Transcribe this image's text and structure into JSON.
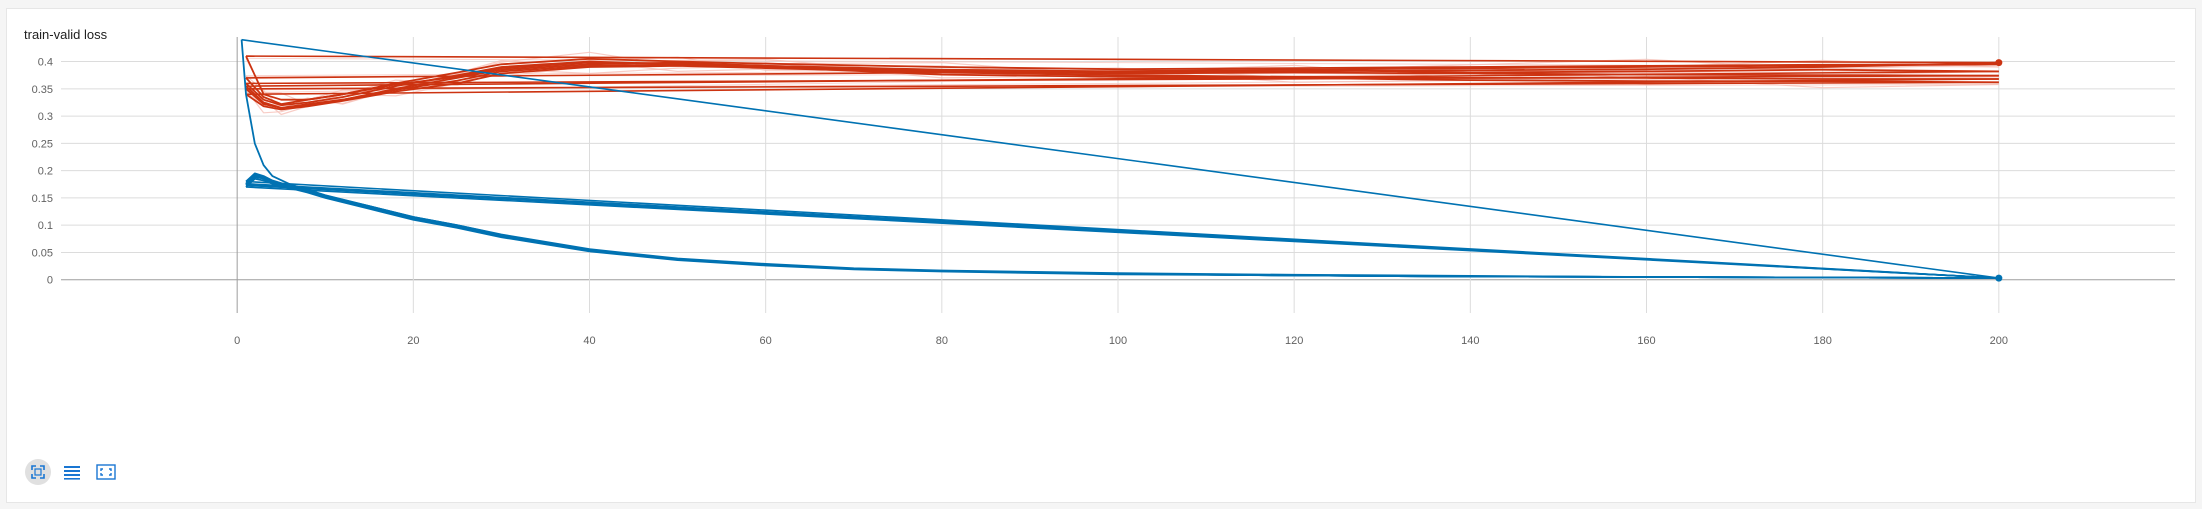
{
  "card": {
    "title": "train-valid loss"
  },
  "toolbar": {
    "buttons": [
      {
        "icon": "fit-domain-icon",
        "active": true
      },
      {
        "icon": "data-table-icon",
        "active": false
      },
      {
        "icon": "toggle-y-axis-icon",
        "active": false
      }
    ]
  },
  "colors": {
    "train_dark": "#0072b2",
    "train_light": "#a6cbe3",
    "valid_dark": "#cc3311",
    "valid_light": "#f6c1b8",
    "grid": "#dcdcdc",
    "axis": "#9e9e9e"
  },
  "chart_data": {
    "type": "line",
    "title": "train-valid loss",
    "xlabel": "",
    "ylabel": "",
    "xlim": [
      -20,
      220
    ],
    "ylim": [
      -0.05,
      0.445
    ],
    "x_ticks": [
      0,
      20,
      40,
      60,
      80,
      100,
      120,
      140,
      160,
      180,
      200
    ],
    "y_ticks": [
      0,
      0.05,
      0.1,
      0.15,
      0.2,
      0.25,
      0.3,
      0.35,
      0.4
    ],
    "y_tick_labels": [
      "0",
      "0.05",
      "0.1",
      "0.15",
      "0.2",
      "0.25",
      "0.3",
      "0.35",
      "0.4"
    ],
    "grid": true,
    "series": [
      {
        "group": "valid",
        "x": [
          1,
          3,
          5,
          8,
          12,
          18,
          25,
          30,
          40,
          50,
          60,
          80,
          100,
          120,
          140,
          160,
          180,
          200
        ],
        "y": [
          0.355,
          0.325,
          0.315,
          0.32,
          0.33,
          0.35,
          0.37,
          0.385,
          0.395,
          0.398,
          0.392,
          0.385,
          0.382,
          0.385,
          0.38,
          0.382,
          0.385,
          0.382
        ]
      },
      {
        "group": "valid",
        "x": [
          1,
          3,
          5,
          8,
          12,
          18,
          25,
          30,
          40,
          50,
          60,
          80,
          100,
          120,
          140,
          160,
          180,
          200
        ],
        "y": [
          0.36,
          0.33,
          0.32,
          0.325,
          0.335,
          0.355,
          0.375,
          0.39,
          0.4,
          0.395,
          0.39,
          0.382,
          0.378,
          0.38,
          0.378,
          0.376,
          0.375,
          0.374
        ]
      },
      {
        "group": "valid",
        "x": [
          1,
          3,
          5,
          8,
          12,
          18,
          25,
          30,
          40,
          50,
          60,
          80,
          100,
          120,
          140,
          160,
          180,
          200
        ],
        "y": [
          0.34,
          0.318,
          0.312,
          0.318,
          0.328,
          0.345,
          0.36,
          0.378,
          0.39,
          0.392,
          0.388,
          0.38,
          0.375,
          0.372,
          0.37,
          0.37,
          0.368,
          0.368
        ]
      },
      {
        "group": "valid",
        "x": [
          1,
          3,
          5,
          8,
          12,
          18,
          25,
          30,
          40,
          50,
          60,
          80,
          100,
          120,
          140,
          160,
          180,
          200
        ],
        "y": [
          0.37,
          0.335,
          0.322,
          0.33,
          0.34,
          0.36,
          0.38,
          0.395,
          0.405,
          0.4,
          0.396,
          0.39,
          0.386,
          0.388,
          0.39,
          0.392,
          0.394,
          0.395
        ]
      },
      {
        "group": "valid",
        "x": [
          1,
          3,
          5,
          8,
          12,
          18,
          25,
          30,
          40,
          50,
          60,
          80,
          100,
          120,
          140,
          160,
          180,
          200
        ],
        "y": [
          0.35,
          0.322,
          0.315,
          0.322,
          0.33,
          0.348,
          0.365,
          0.382,
          0.392,
          0.394,
          0.39,
          0.376,
          0.372,
          0.37,
          0.366,
          0.364,
          0.364,
          0.362
        ]
      },
      {
        "group": "valid",
        "x": [
          1,
          3,
          5,
          8,
          12,
          18,
          25,
          30,
          40,
          50,
          60,
          80,
          100,
          120,
          140,
          160,
          180,
          200
        ],
        "y": [
          0.41,
          0.34,
          0.33,
          0.33,
          0.34,
          0.358,
          0.372,
          0.388,
          0.398,
          0.396,
          0.392,
          0.384,
          0.38,
          0.382,
          0.384,
          0.386,
          0.39,
          0.398
        ]
      },
      {
        "group": "train",
        "x": [
          0.5,
          1,
          2,
          3,
          4,
          6,
          8,
          10,
          15,
          20,
          25,
          30,
          40,
          50,
          60,
          70,
          80,
          100,
          120,
          140,
          160,
          180,
          200
        ],
        "y": [
          0.44,
          0.34,
          0.25,
          0.21,
          0.19,
          0.175,
          0.165,
          0.155,
          0.135,
          0.115,
          0.1,
          0.082,
          0.055,
          0.038,
          0.028,
          0.02,
          0.016,
          0.011,
          0.008,
          0.006,
          0.005,
          0.004,
          0.003
        ]
      },
      {
        "group": "train",
        "x": [
          1,
          2,
          3,
          4,
          6,
          8,
          10,
          15,
          20,
          25,
          30,
          40,
          50,
          60,
          70,
          80,
          100,
          120,
          140,
          160,
          180,
          200
        ],
        "y": [
          0.175,
          0.19,
          0.185,
          0.178,
          0.17,
          0.162,
          0.152,
          0.132,
          0.112,
          0.097,
          0.08,
          0.054,
          0.037,
          0.027,
          0.02,
          0.016,
          0.011,
          0.008,
          0.006,
          0.005,
          0.004,
          0.003
        ]
      },
      {
        "group": "train",
        "x": [
          1,
          2,
          3,
          4,
          6,
          8,
          10,
          15,
          20,
          25,
          30,
          40,
          50,
          60,
          70,
          80,
          100,
          120,
          140,
          160,
          180,
          200
        ],
        "y": [
          0.18,
          0.195,
          0.19,
          0.182,
          0.172,
          0.163,
          0.154,
          0.135,
          0.115,
          0.1,
          0.083,
          0.056,
          0.039,
          0.029,
          0.021,
          0.017,
          0.012,
          0.009,
          0.007,
          0.005,
          0.004,
          0.003
        ]
      },
      {
        "group": "train",
        "x": [
          1,
          2,
          3,
          4,
          6,
          8,
          10,
          15,
          20,
          25,
          30,
          40,
          50,
          60,
          70,
          80,
          100,
          120,
          140,
          160,
          180,
          200
        ],
        "y": [
          0.17,
          0.185,
          0.182,
          0.176,
          0.168,
          0.16,
          0.15,
          0.13,
          0.11,
          0.095,
          0.078,
          0.052,
          0.036,
          0.026,
          0.019,
          0.015,
          0.01,
          0.008,
          0.006,
          0.005,
          0.004,
          0.003
        ]
      },
      {
        "group": "train",
        "x": [
          1,
          2,
          3,
          4,
          6,
          8,
          10,
          15,
          20,
          25,
          30,
          40,
          50,
          60,
          70,
          80,
          100,
          120,
          140,
          160,
          180,
          200
        ],
        "y": [
          0.173,
          0.188,
          0.186,
          0.179,
          0.171,
          0.161,
          0.153,
          0.133,
          0.113,
          0.098,
          0.081,
          0.055,
          0.038,
          0.028,
          0.02,
          0.016,
          0.011,
          0.008,
          0.006,
          0.005,
          0.004,
          0.003
        ]
      },
      {
        "group": "train",
        "x": [
          1,
          2,
          3,
          4,
          6,
          8,
          10,
          15,
          20,
          25,
          30,
          40,
          50,
          60,
          70,
          80,
          100,
          120,
          140,
          160,
          180,
          200
        ],
        "y": [
          0.176,
          0.192,
          0.188,
          0.18,
          0.169,
          0.164,
          0.151,
          0.134,
          0.114,
          0.099,
          0.082,
          0.053,
          0.037,
          0.027,
          0.02,
          0.016,
          0.011,
          0.008,
          0.006,
          0.005,
          0.004,
          0.003
        ]
      }
    ],
    "endpoints": [
      {
        "group": "valid",
        "x": 200,
        "y": 0.398
      },
      {
        "group": "train",
        "x": 200,
        "y": 0.003
      }
    ]
  }
}
